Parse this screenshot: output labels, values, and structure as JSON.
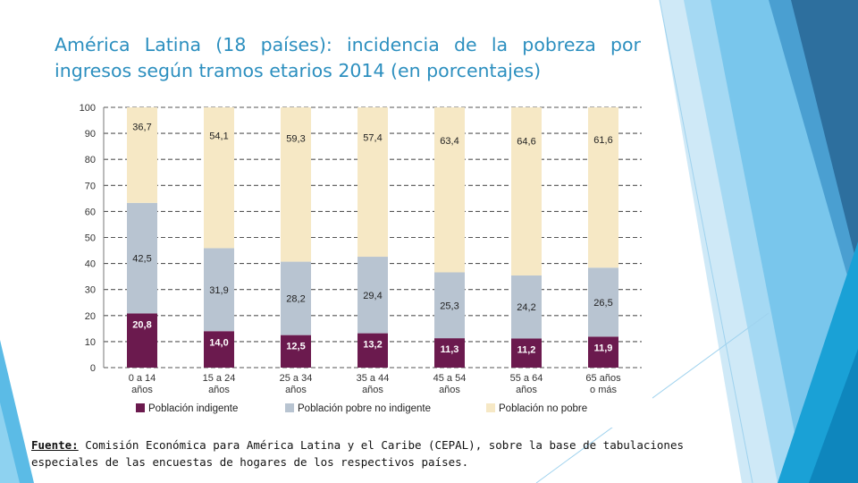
{
  "slide": {
    "title": "América Latina (18 países): incidencia de la pobreza por ingresos según tramos etarios 2014 (en porcentajes)",
    "source_label": "Fuente:",
    "source_text": " Comisión Económica para América Latina y el Caribe (CEPAL), sobre la base de tabulaciones especiales de las encuestas de hogares de los respectivos países."
  },
  "colors": {
    "indigente": "#6b1a4e",
    "pobre_no_indigente": "#b8c4d1",
    "no_pobre": "#f6e8c5",
    "title": "#2c8fbf"
  },
  "chart_data": {
    "type": "bar",
    "stacked": true,
    "title": "",
    "xlabel": "",
    "ylabel": "",
    "ylim": [
      0,
      100
    ],
    "yticks": [
      0,
      10,
      20,
      30,
      40,
      50,
      60,
      70,
      80,
      90,
      100
    ],
    "grid": true,
    "legend_position": "bottom",
    "categories": [
      [
        "0 a 14",
        "años"
      ],
      [
        "15 a 24",
        "años"
      ],
      [
        "25 a 34",
        "años"
      ],
      [
        "35 a 44",
        "años"
      ],
      [
        "45 a 54",
        "años"
      ],
      [
        "55 a 64",
        "años"
      ],
      [
        "65 años",
        "o más"
      ]
    ],
    "series": [
      {
        "name": "Población indigente",
        "color": "#6b1a4e",
        "label_color": "#ffffff",
        "values": [
          20.8,
          14.0,
          12.5,
          13.2,
          11.3,
          11.2,
          11.9
        ],
        "labels": [
          "20,8",
          "14,0",
          "12,5",
          "13,2",
          "11,3",
          "11,2",
          "11,9"
        ]
      },
      {
        "name": "Población pobre no indigente",
        "color": "#b8c4d1",
        "label_color": "#222222",
        "values": [
          42.5,
          31.9,
          28.2,
          29.4,
          25.3,
          24.2,
          26.5
        ],
        "labels": [
          "42,5",
          "31,9",
          "28,2",
          "29,4",
          "25,3",
          "24,2",
          "26,5"
        ]
      },
      {
        "name": "Población no pobre",
        "color": "#f6e8c5",
        "label_color": "#222222",
        "values": [
          36.7,
          54.1,
          59.3,
          57.4,
          63.4,
          64.6,
          61.6
        ],
        "labels": [
          "36,7",
          "54,1",
          "59,3",
          "57,4",
          "63,4",
          "64,6",
          "61,6"
        ]
      }
    ]
  }
}
